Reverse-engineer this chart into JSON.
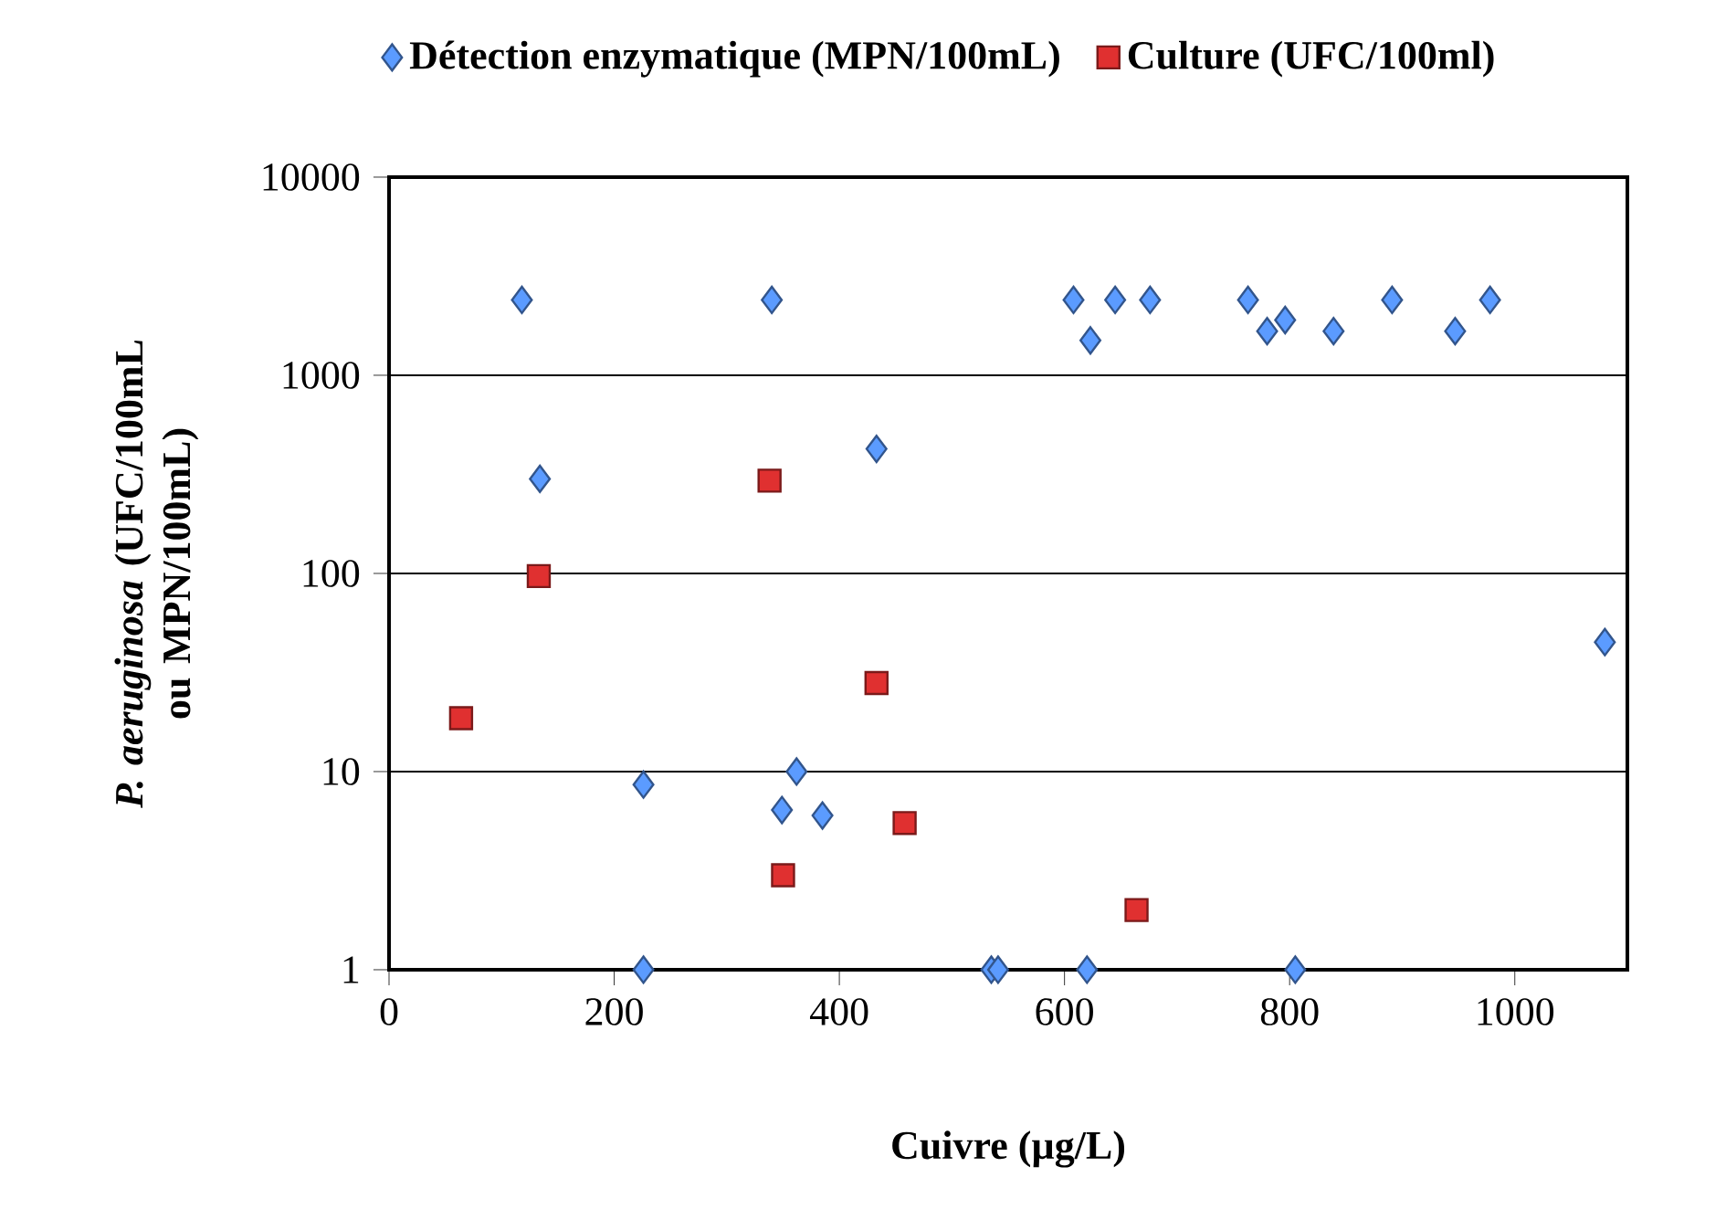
{
  "chart_data": {
    "type": "scatter",
    "xlabel": "Cuivre (µg/L)",
    "ylabel": "*P. aeruginosa* (UFC/100mL ou MPN/100mL)",
    "log": "y",
    "xlim": [
      0,
      1100
    ],
    "xticks": [
      0,
      200,
      400,
      600,
      800,
      1000
    ],
    "ylim": [
      1,
      10000
    ],
    "yticks": [
      1,
      10,
      100,
      1000,
      10000
    ],
    "grid": "y",
    "legend": "top",
    "series": [
      {
        "name": "Détection enzymatique (MPN/100mL)",
        "color": "#5b9bff",
        "marker": "diamond",
        "x": [
          118,
          340,
          134,
          433,
          226,
          226,
          362,
          349,
          385,
          535,
          541,
          620,
          805,
          608,
          623,
          645,
          676,
          763,
          780,
          796,
          839,
          891,
          947,
          978,
          1080
        ],
        "values": [
          2400,
          2400,
          300,
          425,
          8.6,
          1,
          10,
          6.4,
          6,
          1,
          1,
          1,
          1,
          2400,
          1500,
          2400,
          2400,
          2400,
          1670,
          1900,
          1670,
          2400,
          1670,
          2400,
          45
        ]
      },
      {
        "name": "Culture (UFC/100ml)",
        "color": "#e03030",
        "marker": "square",
        "x": [
          64,
          133,
          338,
          350,
          433,
          458,
          664
        ],
        "values": [
          18.6,
          97,
          294,
          3,
          28,
          5.5,
          2
        ]
      }
    ]
  }
}
